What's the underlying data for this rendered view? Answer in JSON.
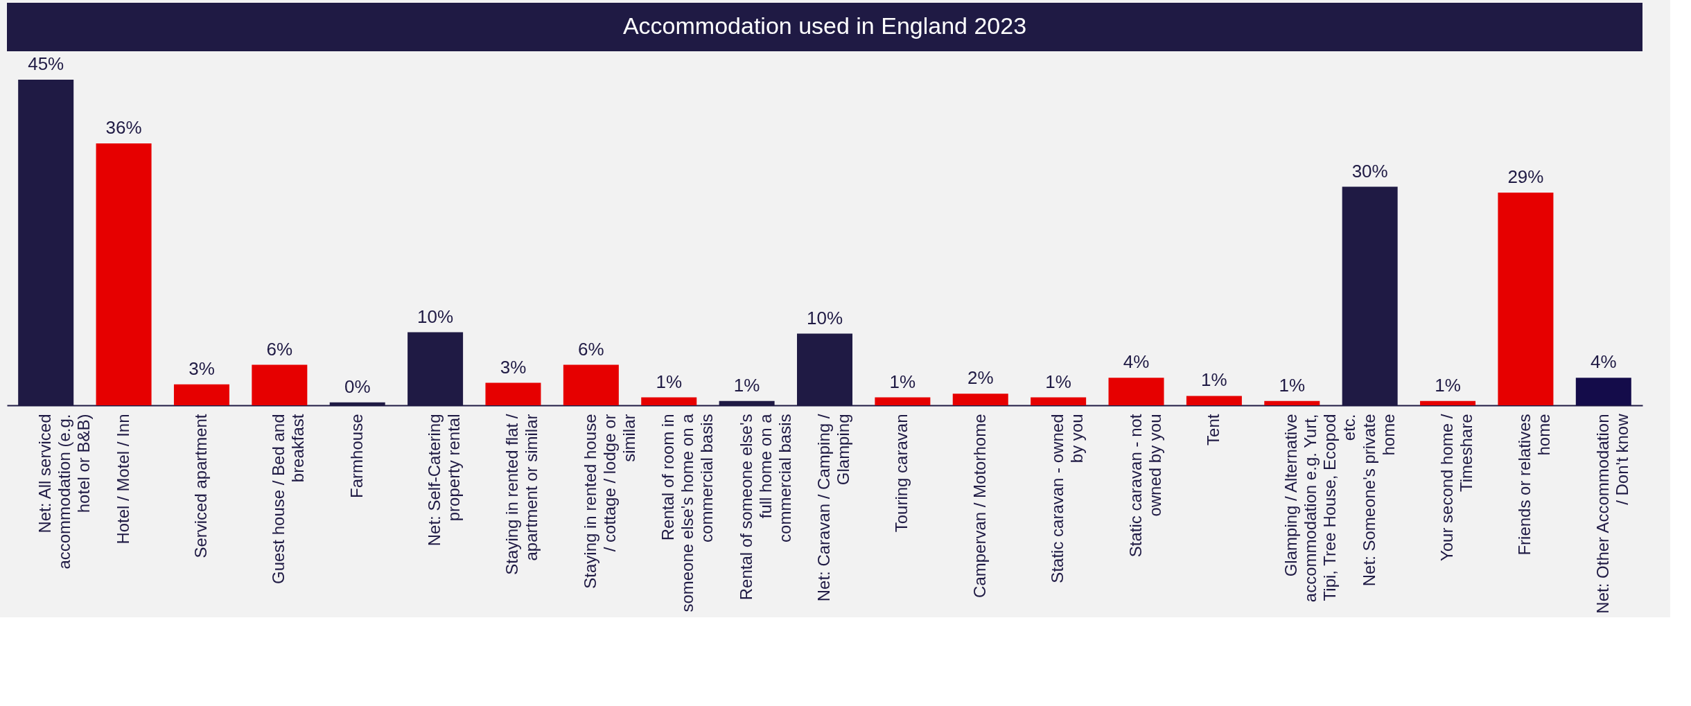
{
  "chart_data": {
    "type": "bar",
    "title": "Accommodation used in England 2023",
    "categories": [
      "Net: All serviced accommodation (e.g. hotel or B&B)",
      "Hotel / Motel / Inn",
      "Serviced apartment",
      "Guest house / Bed and breakfast",
      "Farmhouse",
      "Net: Self-Catering property rental",
      "Staying in rented flat / apartment or similar",
      "Staying in rented house / cottage / lodge or similar",
      "Rental of room in someone else's home on a commercial basis",
      "Rental of someone else's full home on a commercial basis",
      "Net: Caravan / Camping / Glamping",
      "Touring caravan",
      "Campervan / Motorhome",
      "Static caravan - owned by you",
      "Static caravan - not owned by you",
      "Tent",
      "Glamping / Alternative accommodation e.g. Yurt, Tipi, Tree House, Ecopod etc.",
      "Net: Someone's private home",
      "Your second home / Timeshare",
      "Friends or relatives home",
      "Net: Other Accommodation / Don't know"
    ],
    "values": [
      45.0,
      36.2,
      2.9,
      5.6,
      0.4,
      10.1,
      3.1,
      5.6,
      1.1,
      0.6,
      9.9,
      1.1,
      1.6,
      1.1,
      3.8,
      1.3,
      0.6,
      30.2,
      0.6,
      29.4,
      3.8
    ],
    "value_labels": [
      "45%",
      "36%",
      "3%",
      "6%",
      "0%",
      "10%",
      "3%",
      "6%",
      "1%",
      "1%",
      "10%",
      "1%",
      "2%",
      "1%",
      "4%",
      "1%",
      "1%",
      "30%",
      "1%",
      "29%",
      "4%"
    ],
    "colors": [
      "#1f1a44",
      "#e60000",
      "#e60000",
      "#e60000",
      "#1f1a44",
      "#1f1a44",
      "#e60000",
      "#e60000",
      "#e60000",
      "#1f1a44",
      "#1f1a44",
      "#e60000",
      "#e60000",
      "#e60000",
      "#e60000",
      "#e60000",
      "#e60000",
      "#1f1a44",
      "#e60000",
      "#e60000",
      "#140c4a"
    ],
    "grid": false
  }
}
